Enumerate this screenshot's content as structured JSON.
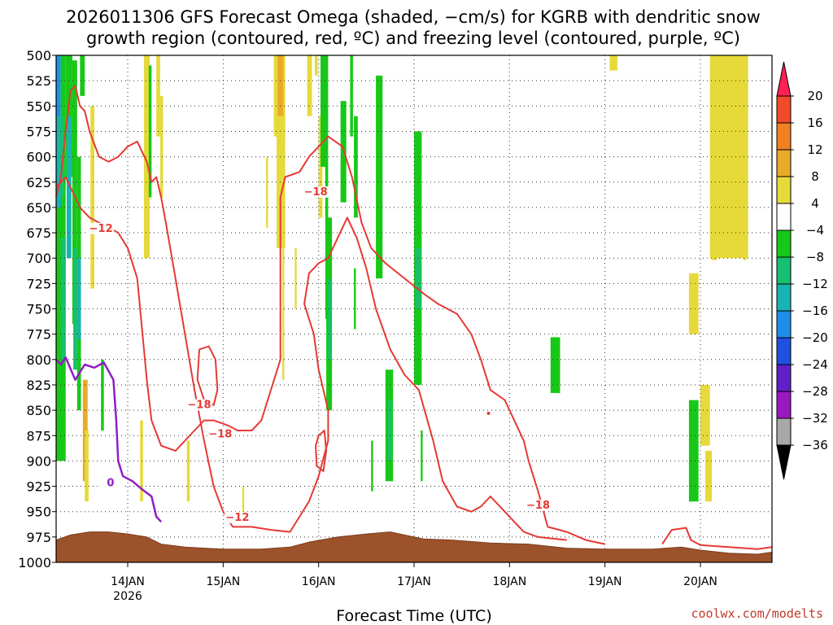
{
  "chart_data": {
    "type": "heatmap",
    "title_line1": "2026011306 GFS Forecast Omega (shaded, −cm/s) for KGRB with dendritic snow",
    "title_line2": "growth region (contoured, red, ºC) and freezing level (contoured, purple, ºC)",
    "xlabel": "Forecast Time (UTC)",
    "credit": "coolwx.com/modelts",
    "x_day_range": [
      13.25,
      20.75
    ],
    "y_range_hpa": [
      500,
      1000
    ],
    "yticks": [
      "500",
      "525",
      "550",
      "575",
      "600",
      "625",
      "650",
      "675",
      "700",
      "725",
      "750",
      "775",
      "800",
      "825",
      "850",
      "875",
      "900",
      "925",
      "950",
      "975",
      "1000"
    ],
    "xticks": [
      {
        "label": "14JAN",
        "sublabel": "2026",
        "day": 14
      },
      {
        "label": "15JAN",
        "sublabel": "",
        "day": 15
      },
      {
        "label": "16JAN",
        "sublabel": "",
        "day": 16
      },
      {
        "label": "17JAN",
        "sublabel": "",
        "day": 17
      },
      {
        "label": "18JAN",
        "sublabel": "",
        "day": 18
      },
      {
        "label": "19JAN",
        "sublabel": "",
        "day": 19
      },
      {
        "label": "20JAN",
        "sublabel": "",
        "day": 20
      }
    ],
    "colorbar": {
      "labels": [
        "20",
        "16",
        "12",
        "8",
        "4",
        "−4",
        "−8",
        "−12",
        "−16",
        "−20",
        "−24",
        "−28",
        "−32",
        "−36"
      ],
      "colors": [
        "#ff1f55",
        "#f04a2a",
        "#f08020",
        "#e8aa28",
        "#e6da3a",
        "#ffffff",
        "#18c818",
        "#16c070",
        "#18b4b4",
        "#1f8ee8",
        "#2050e0",
        "#6020c8",
        "#9a18c0",
        "#a8a8a8",
        "#000000"
      ]
    },
    "contour_labels": [
      {
        "text": "−18",
        "color": "#e53935"
      },
      {
        "text": "−12",
        "color": "#e53935"
      },
      {
        "text": "−18",
        "color": "#e53935"
      },
      {
        "text": "−18",
        "color": "#e53935"
      },
      {
        "text": "−12",
        "color": "#e53935"
      },
      {
        "text": "−18",
        "color": "#e53935"
      },
      {
        "text": "0",
        "color": "#8e1ec6"
      }
    ],
    "dgz_minus12_line": [
      [
        13.25,
        640
      ],
      [
        13.3,
        620
      ],
      [
        13.35,
        575
      ],
      [
        13.4,
        535
      ],
      [
        13.45,
        530
      ],
      [
        13.5,
        550
      ],
      [
        13.55,
        555
      ],
      [
        13.6,
        575
      ],
      [
        13.7,
        600
      ],
      [
        13.8,
        605
      ],
      [
        13.9,
        600
      ],
      [
        14.0,
        590
      ],
      [
        14.1,
        585
      ],
      [
        14.2,
        605
      ],
      [
        14.25,
        625
      ],
      [
        14.3,
        620
      ],
      [
        14.35,
        640
      ],
      [
        14.4,
        665
      ],
      [
        14.5,
        720
      ],
      [
        14.6,
        775
      ],
      [
        14.7,
        830
      ],
      [
        14.8,
        880
      ],
      [
        14.9,
        925
      ],
      [
        15.0,
        950
      ],
      [
        15.1,
        965
      ],
      [
        15.3,
        965
      ],
      [
        15.5,
        968
      ],
      [
        15.7,
        970
      ],
      [
        15.8,
        955
      ],
      [
        15.9,
        940
      ],
      [
        16.0,
        915
      ],
      [
        16.1,
        880
      ],
      [
        16.1,
        850
      ],
      [
        16.0,
        810
      ],
      [
        15.95,
        775
      ],
      [
        15.85,
        745
      ],
      [
        15.9,
        715
      ],
      [
        16.0,
        705
      ],
      [
        16.1,
        700
      ],
      [
        16.15,
        690
      ],
      [
        16.3,
        660
      ],
      [
        16.4,
        680
      ],
      [
        16.5,
        710
      ],
      [
        16.6,
        750
      ],
      [
        16.75,
        790
      ],
      [
        16.9,
        815
      ],
      [
        17.05,
        830
      ],
      [
        17.2,
        880
      ],
      [
        17.3,
        920
      ],
      [
        17.45,
        945
      ],
      [
        17.6,
        950
      ],
      [
        17.7,
        945
      ],
      [
        17.8,
        935
      ],
      [
        17.95,
        950
      ],
      [
        18.15,
        970
      ],
      [
        18.3,
        975
      ],
      [
        18.6,
        978
      ]
    ],
    "dgz_minus18_line": [
      [
        13.25,
        630
      ],
      [
        13.35,
        620
      ],
      [
        13.5,
        650
      ],
      [
        13.6,
        660
      ],
      [
        13.7,
        665
      ],
      [
        13.8,
        670
      ],
      [
        13.9,
        675
      ],
      [
        14.0,
        690
      ],
      [
        14.1,
        720
      ],
      [
        14.15,
        770
      ],
      [
        14.2,
        820
      ],
      [
        14.25,
        860
      ],
      [
        14.35,
        885
      ],
      [
        14.5,
        890
      ],
      [
        14.6,
        880
      ],
      [
        14.7,
        870
      ],
      [
        14.8,
        860
      ],
      [
        14.9,
        860
      ],
      [
        15.05,
        865
      ],
      [
        15.15,
        870
      ],
      [
        15.3,
        870
      ],
      [
        15.4,
        860
      ],
      [
        15.5,
        830
      ],
      [
        15.6,
        800
      ],
      [
        15.6,
        760
      ],
      [
        15.6,
        700
      ],
      [
        15.6,
        640
      ],
      [
        15.65,
        620
      ],
      [
        15.8,
        615
      ],
      [
        15.9,
        600
      ],
      [
        16.0,
        590
      ],
      [
        16.1,
        580
      ],
      [
        16.25,
        590
      ],
      [
        16.35,
        620
      ],
      [
        16.45,
        665
      ],
      [
        16.55,
        690
      ],
      [
        16.7,
        705
      ],
      [
        16.9,
        720
      ],
      [
        17.1,
        735
      ],
      [
        17.25,
        745
      ],
      [
        17.45,
        755
      ],
      [
        17.6,
        775
      ],
      [
        17.7,
        800
      ],
      [
        17.8,
        830
      ],
      [
        17.95,
        840
      ],
      [
        18.05,
        860
      ],
      [
        18.15,
        880
      ],
      [
        18.2,
        900
      ],
      [
        18.3,
        930
      ],
      [
        18.4,
        965
      ],
      [
        18.6,
        970
      ],
      [
        18.8,
        978
      ],
      [
        19.0,
        982
      ]
    ],
    "dgz_island_a": [
      [
        14.75,
        790
      ],
      [
        14.85,
        787
      ],
      [
        14.92,
        800
      ],
      [
        14.94,
        830
      ],
      [
        14.9,
        845
      ],
      [
        14.8,
        840
      ],
      [
        14.73,
        820
      ],
      [
        14.75,
        790
      ]
    ],
    "dgz_island_b": [
      [
        16.0,
        875
      ],
      [
        16.06,
        870
      ],
      [
        16.08,
        890
      ],
      [
        16.05,
        910
      ],
      [
        15.98,
        905
      ],
      [
        15.97,
        885
      ],
      [
        16.0,
        875
      ]
    ],
    "dgz_tail_19": [
      [
        19.6,
        982
      ],
      [
        19.7,
        968
      ],
      [
        19.85,
        966
      ],
      [
        19.9,
        978
      ],
      [
        20.0,
        983
      ],
      [
        20.3,
        985
      ],
      [
        20.6,
        987
      ],
      [
        20.75,
        985
      ]
    ],
    "freezing_line": [
      [
        13.25,
        800
      ],
      [
        13.3,
        805
      ],
      [
        13.35,
        798
      ],
      [
        13.45,
        820
      ],
      [
        13.55,
        805
      ],
      [
        13.65,
        808
      ],
      [
        13.75,
        803
      ],
      [
        13.85,
        820
      ],
      [
        13.88,
        860
      ],
      [
        13.9,
        900
      ],
      [
        13.95,
        915
      ],
      [
        14.05,
        920
      ],
      [
        14.15,
        928
      ],
      [
        14.25,
        935
      ],
      [
        14.3,
        955
      ],
      [
        14.35,
        960
      ]
    ],
    "terrain_line": [
      [
        13.25,
        978
      ],
      [
        13.4,
        973
      ],
      [
        13.6,
        970
      ],
      [
        13.8,
        970
      ],
      [
        14.0,
        972
      ],
      [
        14.2,
        975
      ],
      [
        14.35,
        982
      ],
      [
        14.6,
        985
      ],
      [
        15.0,
        987
      ],
      [
        15.4,
        987
      ],
      [
        15.7,
        985
      ],
      [
        15.9,
        980
      ],
      [
        16.2,
        975
      ],
      [
        16.5,
        972
      ],
      [
        16.75,
        970
      ],
      [
        16.9,
        973
      ],
      [
        17.1,
        977
      ],
      [
        17.4,
        978
      ],
      [
        17.8,
        981
      ],
      [
        18.2,
        982
      ],
      [
        18.6,
        986
      ],
      [
        19.0,
        987
      ],
      [
        19.5,
        987
      ],
      [
        19.8,
        985
      ],
      [
        20.0,
        988
      ],
      [
        20.3,
        991
      ],
      [
        20.6,
        992
      ],
      [
        20.75,
        990
      ]
    ]
  }
}
